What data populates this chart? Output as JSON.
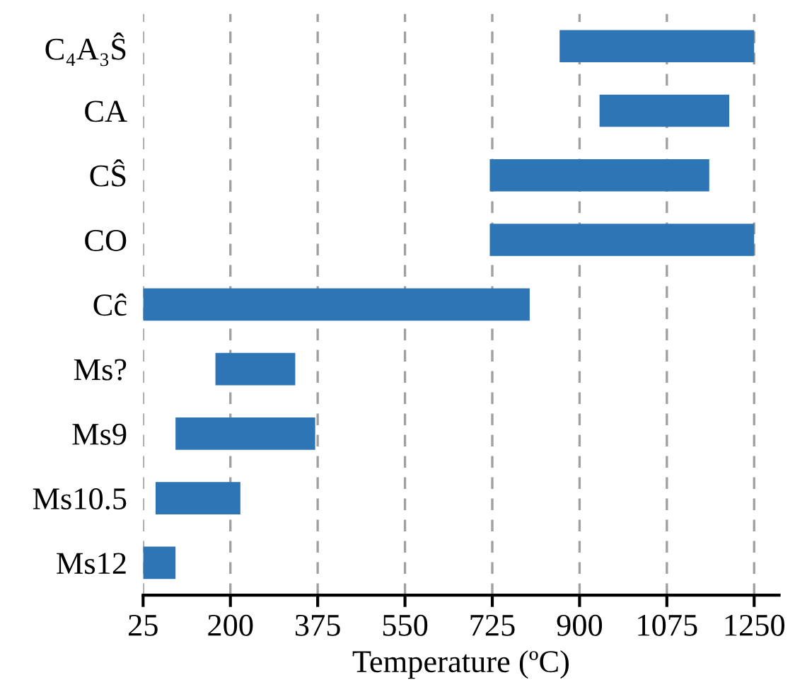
{
  "chart_data": {
    "type": "bar",
    "orientation": "horizontal",
    "xlabel": "Temperature (ºC)",
    "categories": [
      "C₄A₃Ŝ",
      "CA",
      "CŜ",
      "CO",
      "Cĉ",
      "Ms?",
      "Ms9",
      "Ms10.5",
      "Ms12"
    ],
    "base": [
      860,
      940,
      720,
      720,
      25,
      170,
      90,
      50,
      25
    ],
    "values": [
      390,
      260,
      440,
      530,
      775,
      160,
      280,
      170,
      65
    ],
    "color": "#2e75b6",
    "xlim": [
      25,
      1300
    ],
    "xticks": [
      25,
      200,
      375,
      550,
      725,
      900,
      1075,
      1250
    ],
    "grid": "x"
  }
}
